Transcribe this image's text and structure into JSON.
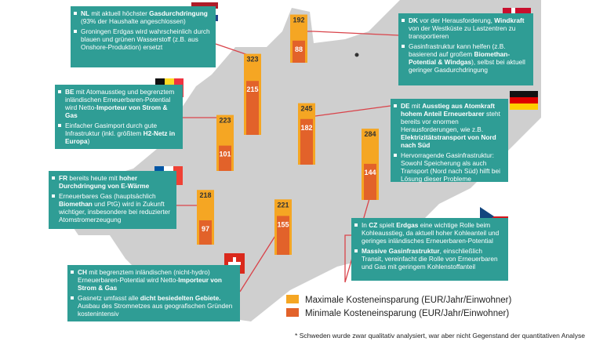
{
  "chart_data": {
    "type": "bar",
    "categories": [
      null,
      null,
      null,
      null,
      null,
      null,
      null
    ],
    "series": [
      {
        "name": "Maximale Kosteneinsparung (EUR/Jahr/Einwohner)",
        "color": "#f5a623",
        "values": [
          323,
          192,
          223,
          245,
          284,
          218,
          221
        ]
      },
      {
        "name": "Minimale Kosteneinsparung (EUR/Jahr/Einwohner)",
        "color": "#e2622a",
        "values": [
          215,
          88,
          101,
          182,
          144,
          97,
          155
        ]
      }
    ],
    "annotations": [
      {
        "paragraphs": [
          [
            {
              "text": "NL",
              "bold": true
            },
            {
              "text": " mit aktuell höchster "
            },
            {
              "text": "Gasdurchdringung",
              "bold": true
            },
            {
              "text": " (93% der Haushalte angeschlossen)"
            }
          ],
          [
            {
              "text": "Groningen Erdgas wird wahrscheinlich durch blauen und grünen Wasserstoff (z.B. aus Onshore-Produktion) ersetzt"
            }
          ]
        ]
      },
      {
        "paragraphs": [
          [
            {
              "text": "DK",
              "bold": true
            },
            {
              "text": " vor der Herausforderung, "
            },
            {
              "text": "Windkraft",
              "bold": true
            },
            {
              "text": " von der Westküste zu Lastzentren zu transportieren"
            }
          ],
          [
            {
              "text": "Gasinfrastruktur kann helfen (z.B. basierend auf großem "
            },
            {
              "text": "Biomethan-Potential & Windgas",
              "bold": true
            },
            {
              "text": "), selbst bei aktuell geringer Gasdurchdringung"
            }
          ]
        ]
      },
      {
        "paragraphs": [
          [
            {
              "text": "BE",
              "bold": true
            },
            {
              "text": " mit Atomausstieg und begrenztem inländischen Erneuerbaren-Potential wird Netto-"
            },
            {
              "text": "Importeur von Strom & Gas",
              "bold": true
            }
          ],
          [
            {
              "text": "Einfacher Gasimport durch gute Infrastruktur (inkl. größtem "
            },
            {
              "text": "H2-Netz in Europa",
              "bold": true
            },
            {
              "text": ")"
            }
          ]
        ]
      },
      {
        "paragraphs": [
          [
            {
              "text": "DE",
              "bold": true
            },
            {
              "text": " mit "
            },
            {
              "text": "Ausstieg aus Atomkraft hohem Anteil Erneuerbarer",
              "bold": true
            },
            {
              "text": " steht bereits vor enormen Herausforderungen, wie z.B. "
            },
            {
              "text": "Elektrizitätstransport von Nord nach Süd",
              "bold": true
            }
          ],
          [
            {
              "text": "Hervorragende Gasinfrastruktur: Sowohl Speicherung als auch Transport (Nord nach Süd) hilft bei Lösung dieser Probleme"
            }
          ]
        ]
      },
      {
        "paragraphs": [
          [
            {
              "text": "In "
            },
            {
              "text": "CZ",
              "bold": true
            },
            {
              "text": " spielt "
            },
            {
              "text": "Erdgas",
              "bold": true
            },
            {
              "text": " eine wichtige Rolle beim Kohleausstieg, da aktuell hoher Kohleanteil und geringes inländisches Erneuerbaren-Potential"
            }
          ],
          [
            {
              "text": "Massive Gasinfrastruktur",
              "bold": true
            },
            {
              "text": ", einschließlich Transit, vereinfacht die Rolle von Erneuerbaren und Gas mit geringem Kohlenstoffanteil"
            }
          ]
        ]
      },
      {
        "paragraphs": [
          [
            {
              "text": "FR",
              "bold": true
            },
            {
              "text": " bereits heute mit "
            },
            {
              "text": "hoher Durchdringung von E-Wärme",
              "bold": true
            }
          ],
          [
            {
              "text": "Erneuerbares Gas (hauptsächlich "
            },
            {
              "text": "Biomethan",
              "bold": true
            },
            {
              "text": " und PtG) wird in Zukunft wichtiger, insbesondere bei reduzierter Atomstromerzeugung"
            }
          ]
        ]
      },
      {
        "paragraphs": [
          [
            {
              "text": "CH",
              "bold": true
            },
            {
              "text": " mit begrenztem inländischen (nicht-hydro) Erneuerbaren-Potential wird Netto-"
            },
            {
              "text": "Importeur von Strom & Gas",
              "bold": true
            }
          ],
          [
            {
              "text": "Gasnetz umfasst alle "
            },
            {
              "text": "dicht besiedelten Gebiete.",
              "bold": true
            },
            {
              "text": " Ausbau des Stromnetzes aus geografischen Gründen kostenintensiv"
            }
          ]
        ]
      }
    ],
    "footnote": "* Schweden wurde zwar qualitativ analysiert, war aber nicht Gegenstand der quantitativen Analyse"
  }
}
